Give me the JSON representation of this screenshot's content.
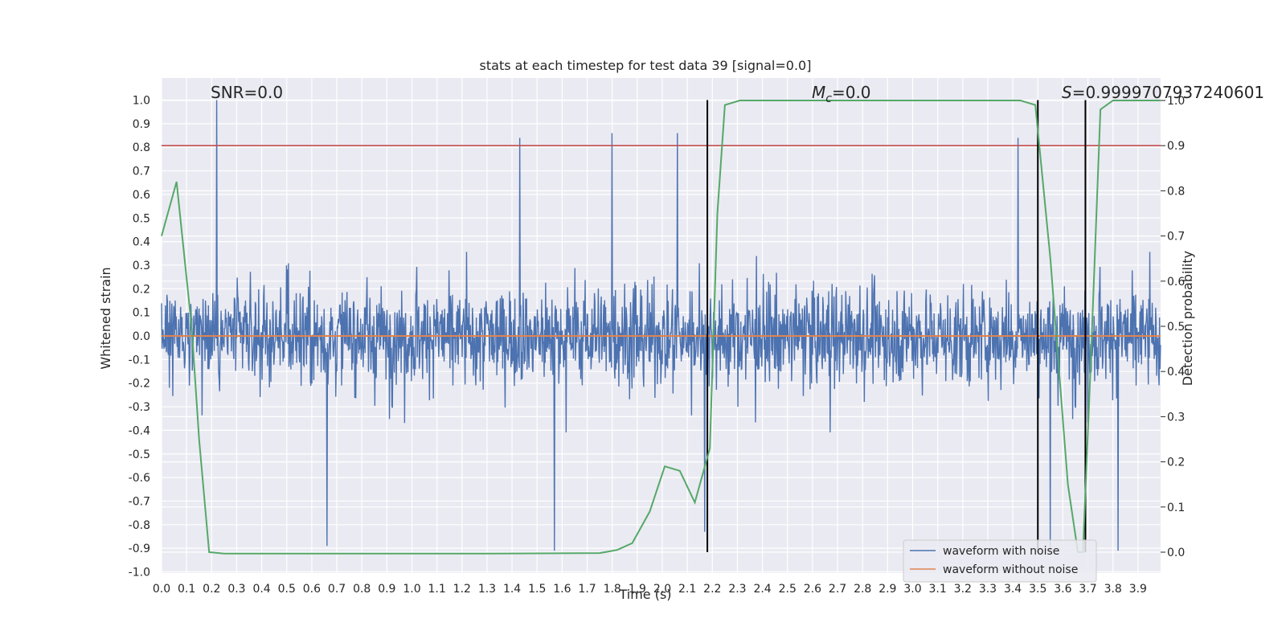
{
  "chart_data": {
    "type": "line",
    "title": "stats at each timestep for test data 39 [signal=0.0]",
    "xlabel": "Time (s)",
    "ylabel": "Whitened strain",
    "y2label": "Detection probability",
    "xlim": [
      0.0,
      3.99
    ],
    "ylim": [
      -1.0,
      1.08
    ],
    "y2lim": [
      -0.046,
      1.0
    ],
    "grid": true,
    "x_ticks": [
      "0.0",
      "0.1",
      "0.2",
      "0.3",
      "0.4",
      "0.5",
      "0.6",
      "0.7",
      "0.8",
      "0.9",
      "1.0",
      "1.1",
      "1.2",
      "1.3",
      "1.4",
      "1.5",
      "1.6",
      "1.7",
      "1.8",
      "1.9",
      "2.0",
      "2.1",
      "2.2",
      "2.3",
      "2.4",
      "2.5",
      "2.6",
      "2.7",
      "2.8",
      "2.9",
      "3.0",
      "3.1",
      "3.2",
      "3.3",
      "3.4",
      "3.5",
      "3.6",
      "3.7",
      "3.8",
      "3.9"
    ],
    "y_ticks": [
      "-1.0",
      "-0.9",
      "-0.8",
      "-0.7",
      "-0.6",
      "-0.5",
      "-0.4",
      "-0.3",
      "-0.2",
      "-0.1",
      "0.0",
      "0.1",
      "0.2",
      "0.3",
      "0.4",
      "0.5",
      "0.6",
      "0.7",
      "0.8",
      "0.9",
      "1.0"
    ],
    "y2_ticks": [
      "0.0",
      "0.1",
      "0.2",
      "0.3",
      "0.4",
      "0.5",
      "0.6",
      "0.7",
      "0.8",
      "0.9",
      "1.0"
    ],
    "annotations": {
      "snr": "SNR=0.0",
      "mc_symbol": "M",
      "mc_sub": "c",
      "mc_value": "=0.0",
      "s_symbol": "S",
      "s_value": "=0.9999707937240601"
    },
    "series": [
      {
        "name": "waveform with noise",
        "color": "#4c72b0",
        "peaks": [
          [
            0.22,
            1.0
          ],
          [
            1.43,
            0.84
          ],
          [
            1.57,
            -0.91
          ],
          [
            1.8,
            0.86
          ],
          [
            2.06,
            0.86
          ],
          [
            3.42,
            0.84
          ],
          [
            3.55,
            -0.91
          ],
          [
            3.82,
            -0.91
          ],
          [
            0.66,
            -0.89
          ],
          [
            2.17,
            -0.83
          ],
          [
            3.69,
            -0.85
          ]
        ]
      },
      {
        "name": "waveform without noise",
        "color": "#dd8452",
        "values": [
          [
            0.0,
            0.0
          ],
          [
            3.99,
            0.0
          ]
        ]
      },
      {
        "color": "#55a868",
        "axis": "y2",
        "values": [
          [
            0.0,
            0.7
          ],
          [
            0.06,
            0.82
          ],
          [
            0.12,
            0.5
          ],
          [
            0.15,
            0.25
          ],
          [
            0.19,
            0.0
          ],
          [
            0.25,
            -0.003
          ],
          [
            1.3,
            -0.003
          ],
          [
            1.75,
            -0.002
          ],
          [
            1.82,
            0.005
          ],
          [
            1.88,
            0.02
          ],
          [
            1.95,
            0.09
          ],
          [
            2.01,
            0.19
          ],
          [
            2.07,
            0.18
          ],
          [
            2.13,
            0.11
          ],
          [
            2.19,
            0.23
          ],
          [
            2.22,
            0.75
          ],
          [
            2.25,
            0.99
          ],
          [
            2.31,
            1.0
          ],
          [
            3.43,
            1.0
          ],
          [
            3.49,
            0.99
          ],
          [
            3.55,
            0.65
          ],
          [
            3.62,
            0.15
          ],
          [
            3.66,
            0.0
          ],
          [
            3.68,
            0.0
          ],
          [
            3.71,
            0.4
          ],
          [
            3.75,
            0.98
          ],
          [
            3.8,
            1.0
          ],
          [
            3.99,
            1.0
          ]
        ]
      }
    ],
    "threshold": {
      "color": "#c44e52",
      "y2": 0.9
    },
    "vlines_x": [
      2.18,
      3.5,
      3.69
    ],
    "legend": {
      "position": "lower-right",
      "entries": [
        "waveform with noise",
        "waveform without noise"
      ]
    },
    "colors": {
      "plot_bg": "#eaeaf2",
      "grid": "#ffffff",
      "vline": "#000000",
      "text": "#262626"
    }
  }
}
